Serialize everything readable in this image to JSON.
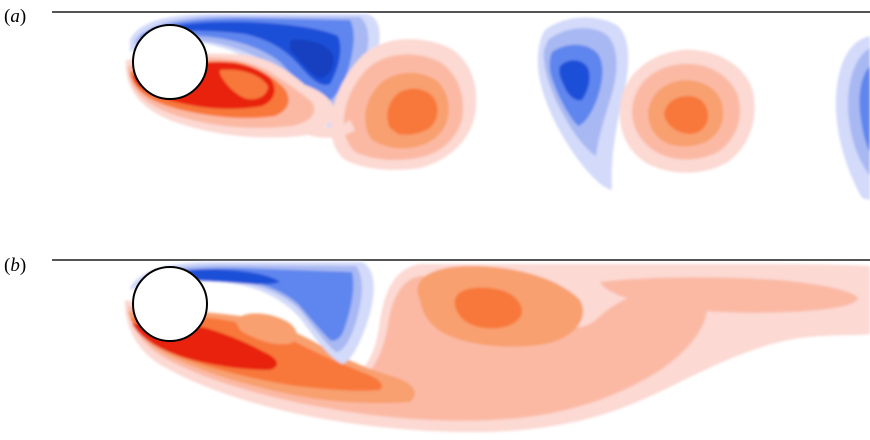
{
  "figure": {
    "panels": [
      {
        "id": "a",
        "label_open": "(",
        "label_letter": "a",
        "label_close": ")"
      },
      {
        "id": "b",
        "label_open": "(",
        "label_letter": "b",
        "label_close": ")"
      }
    ],
    "colors": {
      "positive_strong": "#e8200c",
      "positive_mid": "#f8783a",
      "positive_light": "#fbb9a4",
      "positive_faint": "#fcd9d3",
      "negative_strong": "#1c50d8",
      "negative_mid": "#5e86ee",
      "negative_light": "#a8b8f2",
      "negative_faint": "#d3dafa",
      "wall": "#555555",
      "cylinder_edge": "#000000"
    }
  }
}
